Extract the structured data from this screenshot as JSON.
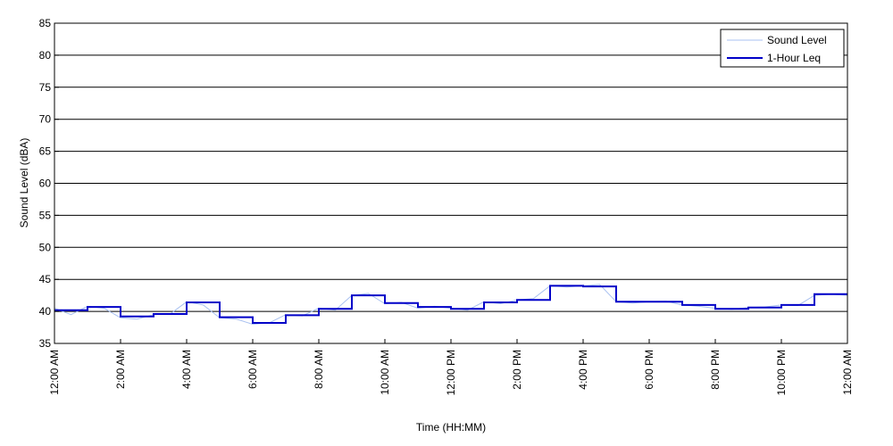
{
  "chart_data": {
    "type": "line",
    "title": "",
    "xlabel": "Time (HH:MM)",
    "ylabel": "Sound Level (dBA)",
    "ylim": [
      35,
      85
    ],
    "yticks": [
      35,
      40,
      45,
      50,
      55,
      60,
      65,
      70,
      75,
      80,
      85
    ],
    "xlim": [
      0,
      24
    ],
    "xticks": [
      0,
      2,
      4,
      6,
      8,
      10,
      12,
      14,
      16,
      18,
      20,
      22,
      24
    ],
    "xtick_labels": [
      "12:00 AM",
      "2:00 AM",
      "4:00 AM",
      "6:00 AM",
      "8:00 AM",
      "10:00 AM",
      "12:00 PM",
      "2:00 PM",
      "4:00 PM",
      "6:00 PM",
      "8:00 PM",
      "10:00 PM",
      "12:00 AM"
    ],
    "grid": "horizontal",
    "legend": "top-right",
    "series": [
      {
        "name": "Sound Level",
        "color": "#a8c0f0",
        "style": "thin-line",
        "x": [
          0,
          0.5,
          1,
          1.5,
          2,
          2.5,
          3,
          3.5,
          4,
          4.5,
          5,
          5.5,
          6,
          6.5,
          7,
          7.5,
          8,
          8.5,
          9,
          9.5,
          10,
          10.5,
          11,
          11.5,
          12,
          12.5,
          13,
          13.5,
          14,
          14.5,
          15,
          15.5,
          16,
          16.5,
          17,
          17.5,
          18,
          18.5,
          19,
          19.5,
          20,
          20.5,
          21,
          21.5,
          22,
          22.5,
          23,
          23.5,
          24
        ],
        "values": [
          40.5,
          39.5,
          40.8,
          40.5,
          39,
          38.8,
          39.5,
          39.6,
          41.5,
          41,
          39,
          38.8,
          38,
          38.2,
          39.5,
          39.3,
          40.5,
          40.2,
          42.5,
          42.8,
          41.2,
          41.4,
          40.5,
          40.8,
          40.5,
          40.2,
          41.5,
          41.2,
          41.8,
          42,
          44,
          43.8,
          44,
          44.2,
          41.5,
          41.3,
          41.5,
          41.6,
          41,
          40.8,
          40.5,
          40.3,
          40.6,
          40.7,
          41,
          40.9,
          42.5,
          42.7,
          42.5
        ]
      },
      {
        "name": "1-Hour Leq",
        "color": "#0000c8",
        "style": "step",
        "x": [
          0,
          1,
          2,
          3,
          4,
          5,
          6,
          7,
          8,
          9,
          10,
          11,
          12,
          13,
          14,
          15,
          16,
          17,
          18,
          19,
          20,
          21,
          22,
          23
        ],
        "values": [
          40.2,
          40.7,
          39.2,
          39.6,
          41.4,
          39.1,
          38.2,
          39.4,
          40.4,
          42.5,
          41.3,
          40.7,
          40.4,
          41.4,
          41.8,
          44.0,
          43.9,
          41.5,
          41.5,
          41.0,
          40.4,
          40.6,
          41.0,
          42.7
        ]
      }
    ]
  }
}
